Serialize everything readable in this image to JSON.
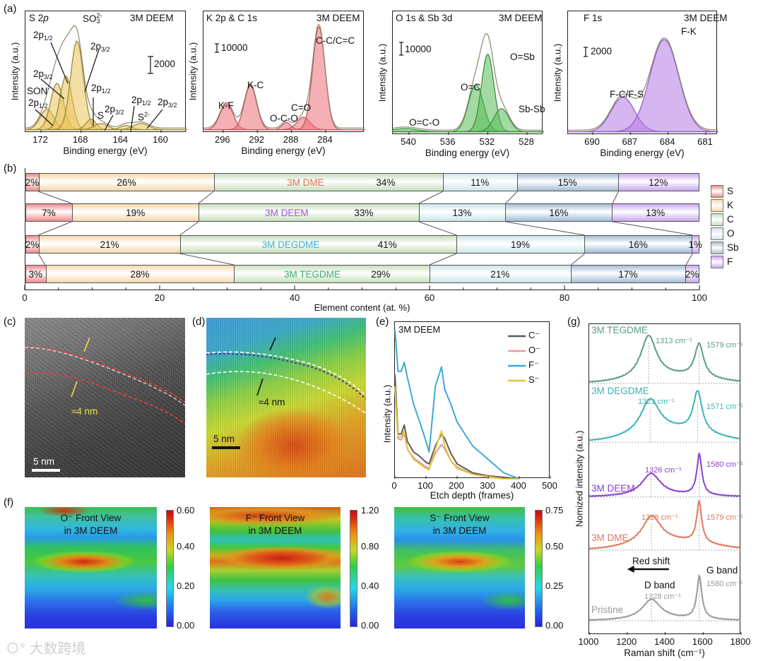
{
  "panel_labels": [
    "(a)",
    "(b)",
    "(c)",
    "(d)",
    "(e)",
    "(f)",
    "(g)"
  ],
  "colors": {
    "S": "#ee8a8c",
    "K": "#f6d8ac",
    "C": "#c6dfbc",
    "O": "#cbe7ea",
    "Sb": "#a2bdd4",
    "F": "#caa6ef"
  },
  "xps_annotations": {
    "s2p": {
      "title_main": "S 2",
      "title_it": "p",
      "sample": "3M DEEM",
      "scale": "2000",
      "so3_main": "SO",
      "so3_sub": "3",
      "so3_sup": "2-",
      "son": "SON",
      "son_sup": "-",
      "s": "S",
      "s2_main": "S",
      "s2_sup": "2-",
      "labels": [
        {
          "main": "2p",
          "sub": "1/2"
        },
        {
          "main": "2p",
          "sub": "3/2"
        },
        {
          "main": "2p",
          "sub": "3/2"
        },
        {
          "main": "2p",
          "sub": "1/2"
        },
        {
          "main": "2p",
          "sub": "1/2"
        },
        {
          "main": "2p",
          "sub": "3/2"
        },
        {
          "main": "2p",
          "sub": "1/2"
        },
        {
          "main": "2p",
          "sub": "3/2"
        }
      ]
    },
    "kc": {
      "title": "K 2p & C 1s",
      "sample": "3M DEEM",
      "scale": "10000",
      "peaks": [
        "K-F",
        "K-C",
        "O-C-O",
        "C=O",
        "C-C/C=C"
      ]
    },
    "osb": {
      "title": "O 1s & Sb 3d",
      "sample": "3M DEEM",
      "scale": "10000",
      "peaks": [
        "O=C-O",
        "O=C",
        "O=Sb",
        "Sb-Sb"
      ]
    },
    "f1s": {
      "title": "F 1s",
      "sample": "3M DEEM",
      "scale": "2000",
      "peaks": [
        "F-C/F-S",
        "F-K"
      ]
    }
  },
  "tem": {
    "thickness": "≈4 nm",
    "scale_bar": "5 nm"
  },
  "eds": {
    "thickness": "≈4 nm",
    "scale_bar": "5 nm"
  },
  "heatmaps": [
    {
      "title1": "O⁻ Front View",
      "title2": "in 3M DEEM",
      "cbar": [
        "0.60",
        "0.40",
        "0.20",
        "0.00"
      ]
    },
    {
      "title1": "F⁻ Front View",
      "title2": "in 3M DEEM",
      "cbar": [
        "1.20",
        "0.80",
        "0.40",
        "0.00"
      ]
    },
    {
      "title1": "S⁻ Front View",
      "title2": "in 3M DEEM",
      "cbar": [
        "0.75",
        "0.50",
        "0.25",
        "0.00"
      ]
    }
  ],
  "watermark": "大数跨境",
  "chart_data": [
    {
      "type": "area",
      "title": "S 2p",
      "xlabel": "Binding energy (eV)",
      "ylabel": "Intensity (a.u.)",
      "xlim": [
        173.55,
        157.46
      ],
      "ylim": [
        -0.03,
        1.15
      ],
      "xticks": [
        172,
        168,
        164,
        160
      ],
      "color": "#e9c25a",
      "stroke": "#9a8a3a",
      "peaks": [
        {
          "c": 171.4,
          "h": 0.2,
          "w": 0.8
        },
        {
          "c": 170.4,
          "h": 0.45,
          "w": 0.75
        },
        {
          "c": 169.5,
          "h": 0.52,
          "w": 0.7
        },
        {
          "c": 168.4,
          "h": 0.86,
          "w": 0.75
        },
        {
          "c": 167.0,
          "h": 0.1,
          "w": 0.6
        },
        {
          "c": 166.0,
          "h": 0.06,
          "w": 0.8
        },
        {
          "c": 163.5,
          "h": 0.04,
          "w": 0.7
        },
        {
          "c": 162.0,
          "h": 0.06,
          "w": 0.9
        }
      ]
    },
    {
      "type": "area",
      "title": "K 2p & C 1s",
      "xlabel": "Binding energy (eV)",
      "ylabel": "Intensity (a.u.)",
      "xlim": [
        298.3,
        279.45
      ],
      "ylim": [
        -0.03,
        1.15
      ],
      "xticks": [
        296,
        292,
        288,
        284
      ],
      "color": "#ec7078",
      "stroke": "#c05860",
      "peaks": [
        {
          "c": 295.6,
          "h": 0.25,
          "w": 0.9
        },
        {
          "c": 292.8,
          "h": 0.43,
          "w": 0.85
        },
        {
          "c": 288.6,
          "h": 0.07,
          "w": 0.6
        },
        {
          "c": 286.6,
          "h": 0.12,
          "w": 0.9
        },
        {
          "c": 284.8,
          "h": 1.0,
          "w": 0.85
        }
      ]
    },
    {
      "type": "area",
      "title": "O 1s & Sb 3d",
      "xlabel": "Binding energy (eV)",
      "ylabel": "Intensity (a.u.)",
      "xlim": [
        541.65,
        526.35
      ],
      "ylim": [
        -0.03,
        1.15
      ],
      "xticks": [
        540,
        536,
        532,
        528
      ],
      "color": "#58bb58",
      "stroke": "#3e8e3e",
      "peaks": [
        {
          "c": 540.4,
          "h": 0.03,
          "w": 1.5
        },
        {
          "c": 533.2,
          "h": 0.45,
          "w": 0.9
        },
        {
          "c": 532.0,
          "h": 0.74,
          "w": 0.75
        },
        {
          "c": 530.6,
          "h": 0.22,
          "w": 0.9
        }
      ]
    },
    {
      "type": "area",
      "title": "F 1s",
      "xlabel": "Binding energy (eV)",
      "ylabel": "Intensity (a.u.)",
      "xlim": [
        691.97,
        680.04
      ],
      "ylim": [
        -0.03,
        1.15
      ],
      "xticks": [
        690,
        687,
        684,
        681
      ],
      "color": "#b57ae6",
      "stroke": "#9060c0",
      "peaks": [
        {
          "c": 687.6,
          "h": 0.33,
          "w": 1.1
        },
        {
          "c": 684.3,
          "h": 0.88,
          "w": 1.35
        }
      ]
    },
    {
      "type": "bar",
      "orientation": "horizontal-stacked",
      "xlabel": "Element content (at. %)",
      "xlim": [
        0,
        100
      ],
      "xticks": [
        0,
        20,
        40,
        60,
        80,
        100
      ],
      "legend": [
        "S",
        "K",
        "C",
        "O",
        "Sb",
        "F"
      ],
      "legend_position": "right",
      "rows": [
        {
          "name": "3M DME",
          "color": "#e0705a",
          "values": [
            2,
            26,
            34,
            11,
            15,
            12
          ],
          "labels": [
            "2%",
            "26%",
            "34%",
            "11%",
            "15%",
            "12%"
          ]
        },
        {
          "name": "3M DEEM",
          "color": "#a552d6",
          "values": [
            7,
            19,
            33,
            13,
            16,
            13
          ],
          "labels": [
            "7%",
            "19%",
            "33%",
            "13%",
            "16%",
            "13%"
          ]
        },
        {
          "name": "3M DEGDME",
          "color": "#3eb0d8",
          "values": [
            2,
            21,
            41,
            19,
            16,
            1
          ],
          "labels": [
            "2%",
            "21%",
            "41%",
            "19%",
            "16%",
            "1%"
          ]
        },
        {
          "name": "3M TEGDME",
          "color": "#3cb07c",
          "values": [
            3,
            28,
            29,
            21,
            17,
            2
          ],
          "labels": [
            "3%",
            "28%",
            "29%",
            "21%",
            "17%",
            "2%"
          ]
        }
      ]
    },
    {
      "type": "line",
      "title": "3M DEEM",
      "xlabel": "Etch depth (frames)",
      "ylabel": "Intensity (a.u.)",
      "xlim": [
        0,
        500
      ],
      "ylim": [
        0,
        1.05
      ],
      "xticks": [
        0,
        100,
        200,
        300,
        400,
        500
      ],
      "legend_position": "top-right",
      "x": [
        0,
        10,
        20,
        30,
        40,
        60,
        80,
        100,
        110,
        130,
        150,
        160,
        180,
        200,
        250,
        300,
        350,
        400
      ],
      "series": [
        {
          "name": "C⁻",
          "color": "#5a5a5a",
          "values": [
            0.7,
            0.3,
            0.3,
            0.36,
            0.25,
            0.18,
            0.15,
            0.11,
            0.1,
            0.22,
            0.3,
            0.27,
            0.17,
            0.1,
            0.04,
            0.02,
            0.01,
            0
          ]
        },
        {
          "name": "O⁻",
          "color": "#e89a9c",
          "values": [
            0.6,
            0.27,
            0.26,
            0.3,
            0.2,
            0.14,
            0.11,
            0.08,
            0.07,
            0.17,
            0.23,
            0.2,
            0.12,
            0.08,
            0.03,
            0.01,
            0,
            0
          ]
        },
        {
          "name": "F⁻",
          "color": "#3fa8d8",
          "values": [
            1.0,
            0.72,
            0.72,
            0.78,
            0.68,
            0.5,
            0.38,
            0.25,
            0.18,
            0.62,
            0.75,
            0.6,
            0.5,
            0.38,
            0.22,
            0.13,
            0.04,
            0.0
          ]
        },
        {
          "name": "S⁻",
          "color": "#e2c440",
          "values": [
            0.62,
            0.28,
            0.28,
            0.32,
            0.2,
            0.13,
            0.1,
            0.07,
            0.06,
            0.2,
            0.32,
            0.22,
            0.12,
            0.07,
            0.03,
            0.015,
            0,
            0
          ]
        }
      ]
    },
    {
      "type": "line",
      "xlabel": "Raman shift (cm⁻¹)",
      "ylabel": "Nomized intensity (a.u.)",
      "xlim": [
        1000,
        1800
      ],
      "ylim": [
        0,
        5.5
      ],
      "xticks": [
        1000,
        1200,
        1400,
        1600,
        1800
      ],
      "annotations": {
        "red_shift": "Red shift",
        "d_band": "D band",
        "g_band": "G band"
      },
      "series": [
        {
          "name": "3M TEGDME",
          "color": "#5a9e80",
          "offset": 4.45,
          "d_pos": 1313,
          "d_h": 0.75,
          "g_pos": 1579,
          "g_h": 0.59,
          "d_label": "1313 cm⁻¹",
          "g_label": "1579 cm⁻¹"
        },
        {
          "name": "3M DEGDME",
          "color": "#3cb4b4",
          "offset": 3.41,
          "d_pos": 1321,
          "d_h": 0.6,
          "g_pos": 1571,
          "g_h": 0.72,
          "d_label": "1321 cm⁻¹",
          "g_label": "1571 cm⁻¹"
        },
        {
          "name": "3M DEEM",
          "color": "#8a40d2",
          "offset": 2.44,
          "d_pos": 1326,
          "d_h": 0.39,
          "g_pos": 1580,
          "g_h": 0.72,
          "d_label": "1326 cm⁻¹",
          "g_label": "1580 cm⁻¹"
        },
        {
          "name": "3M DME",
          "color": "#e0785e",
          "offset": 1.5,
          "d_pos": 1328,
          "d_h": 0.48,
          "g_pos": 1579,
          "g_h": 0.72,
          "d_label": "1328 cm⁻¹",
          "g_label": "1579 cm⁻¹"
        },
        {
          "name": "Pristine",
          "color": "#9a9a9a",
          "offset": 0.25,
          "d_pos": 1328,
          "d_h": 0.35,
          "g_pos": 1580,
          "g_h": 0.75,
          "d_label": "1328 cm⁻¹",
          "g_label": "1580 cm⁻¹"
        }
      ]
    }
  ]
}
